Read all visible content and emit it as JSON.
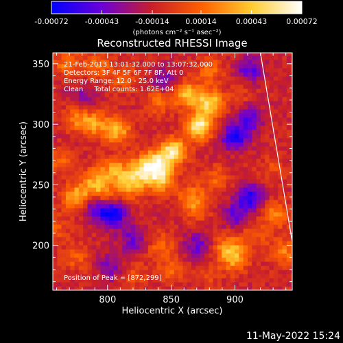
{
  "chart_data": {
    "type": "heatmap",
    "title": "Reconstructed RHESSI Image",
    "xlabel": "Heliocentric X (arcsec)",
    "ylabel": "Heliocentric Y (arcsec)",
    "xlim": [
      757,
      945
    ],
    "ylim": [
      163,
      359
    ],
    "xticks": [
      800,
      850,
      900
    ],
    "yticks": [
      200,
      250,
      300,
      350
    ],
    "colorbar": {
      "ticks": [
        "-0.00072",
        "-0.00043",
        "-0.00014",
        "0.00014",
        "0.00043",
        "0.00072"
      ],
      "unit_label": "(photons cm⁻² s⁻¹ asec⁻²)",
      "range": [
        -0.00072,
        0.00072
      ],
      "colors": [
        "#0000ff",
        "#6a00d8",
        "#c81e2a",
        "#ff6000",
        "#ffcc30",
        "#ffffff"
      ]
    },
    "annotations": [
      "21-Feb-2013 13:01:32.000 to 13:07:32.000",
      "Detectors: 3F 4F 5F 6F 7F 8F, Att 0",
      "Energy Range: 12.0 - 25.0 keV",
      "Clean     Total counts: 1.62E+04",
      "Position of Peak = [872,299]"
    ],
    "peak": [
      872,
      299
    ],
    "limb": [
      [
        920,
        359
      ],
      [
        945,
        203
      ]
    ],
    "hotspots": [
      {
        "x": 872,
        "y": 299,
        "value": 0.00072
      },
      {
        "x": 880,
        "y": 318,
        "value": 0.0006
      },
      {
        "x": 862,
        "y": 325,
        "value": 0.0005
      },
      {
        "x": 852,
        "y": 278,
        "value": 0.00068
      },
      {
        "x": 838,
        "y": 268,
        "value": 0.0006
      },
      {
        "x": 842,
        "y": 255,
        "value": 0.00055
      },
      {
        "x": 826,
        "y": 262,
        "value": 0.00052
      },
      {
        "x": 818,
        "y": 250,
        "value": 0.00045
      },
      {
        "x": 806,
        "y": 262,
        "value": 0.0004
      },
      {
        "x": 790,
        "y": 254,
        "value": 0.0004
      },
      {
        "x": 776,
        "y": 240,
        "value": 0.00052
      },
      {
        "x": 796,
        "y": 242,
        "value": 0.00035
      },
      {
        "x": 808,
        "y": 295,
        "value": 0.00048
      },
      {
        "x": 790,
        "y": 300,
        "value": 0.00038
      },
      {
        "x": 776,
        "y": 305,
        "value": 0.00032
      },
      {
        "x": 840,
        "y": 320,
        "value": 0.00032
      },
      {
        "x": 866,
        "y": 240,
        "value": 0.00032
      },
      {
        "x": 885,
        "y": 255,
        "value": 0.00025
      },
      {
        "x": 870,
        "y": 230,
        "value": 0.00022
      },
      {
        "x": 768,
        "y": 350,
        "value": 0.0003
      },
      {
        "x": 792,
        "y": 350,
        "value": 0.00028
      },
      {
        "x": 812,
        "y": 338,
        "value": 0.00025
      },
      {
        "x": 880,
        "y": 345,
        "value": 0.00028
      },
      {
        "x": 895,
        "y": 198,
        "value": 0.00042
      },
      {
        "x": 900,
        "y": 188,
        "value": 0.00035
      },
      {
        "x": 932,
        "y": 225,
        "value": 0.00035
      },
      {
        "x": 938,
        "y": 195,
        "value": 0.00035
      },
      {
        "x": 915,
        "y": 208,
        "value": 0.00022
      },
      {
        "x": 842,
        "y": 200,
        "value": 0.00025
      },
      {
        "x": 850,
        "y": 180,
        "value": 0.00025
      },
      {
        "x": 775,
        "y": 190,
        "value": 0.00022
      },
      {
        "x": 762,
        "y": 270,
        "value": 0.00025
      },
      {
        "x": 760,
        "y": 215,
        "value": 0.0002
      },
      {
        "x": 930,
        "y": 265,
        "value": 0.00015
      },
      {
        "x": 905,
        "y": 325,
        "value": 0.00012
      },
      {
        "x": 820,
        "y": 176,
        "value": 0.00018
      },
      {
        "x": 878,
        "y": 176,
        "value": 0.00015
      },
      {
        "x": 804,
        "y": 226,
        "value": -0.0006
      },
      {
        "x": 790,
        "y": 233,
        "value": -0.0004
      },
      {
        "x": 900,
        "y": 290,
        "value": -0.0005
      },
      {
        "x": 912,
        "y": 305,
        "value": -0.00035
      },
      {
        "x": 912,
        "y": 240,
        "value": -0.00048
      },
      {
        "x": 900,
        "y": 225,
        "value": -0.0003
      },
      {
        "x": 912,
        "y": 345,
        "value": -0.00035
      },
      {
        "x": 870,
        "y": 200,
        "value": -0.0003
      },
      {
        "x": 820,
        "y": 205,
        "value": -0.0003
      },
      {
        "x": 803,
        "y": 182,
        "value": -0.00028
      },
      {
        "x": 845,
        "y": 335,
        "value": -0.00032
      },
      {
        "x": 780,
        "y": 323,
        "value": -0.0002
      }
    ]
  },
  "footer": {
    "timestamp": "11-May-2022 15:24"
  }
}
